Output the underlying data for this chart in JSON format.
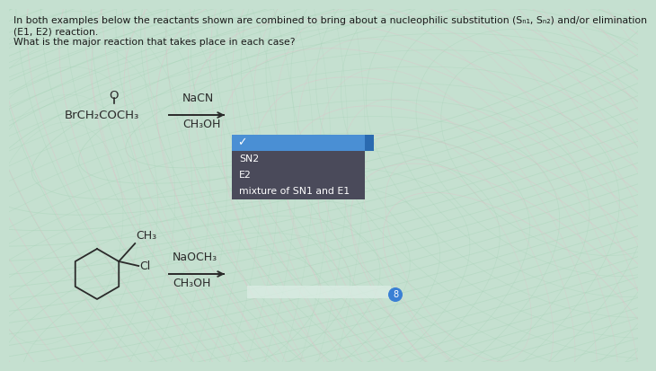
{
  "bg_base": "#c5e0d0",
  "title_line1": "In both examples below the reactants shown are combined to bring about a nucleophilic substitution (Sₙ₁, Sₙ₂) and/or elimination",
  "title_line2": "(E1, E2) reaction.",
  "title_line3": "What is the major reaction that takes place in each case?",
  "text_color": "#1a1a1a",
  "dropdown_blue_bg": "#4a8fd4",
  "dropdown_dark_bg": "#4a4a5a",
  "dropdown_item1": "SN2",
  "dropdown_item2": "E2",
  "dropdown_item3": "mixture of SN1 and E1",
  "swirl_green": "#a8d4b8",
  "swirl_pink": "#e8b8c8",
  "swirl_white": "#e8f4ec"
}
